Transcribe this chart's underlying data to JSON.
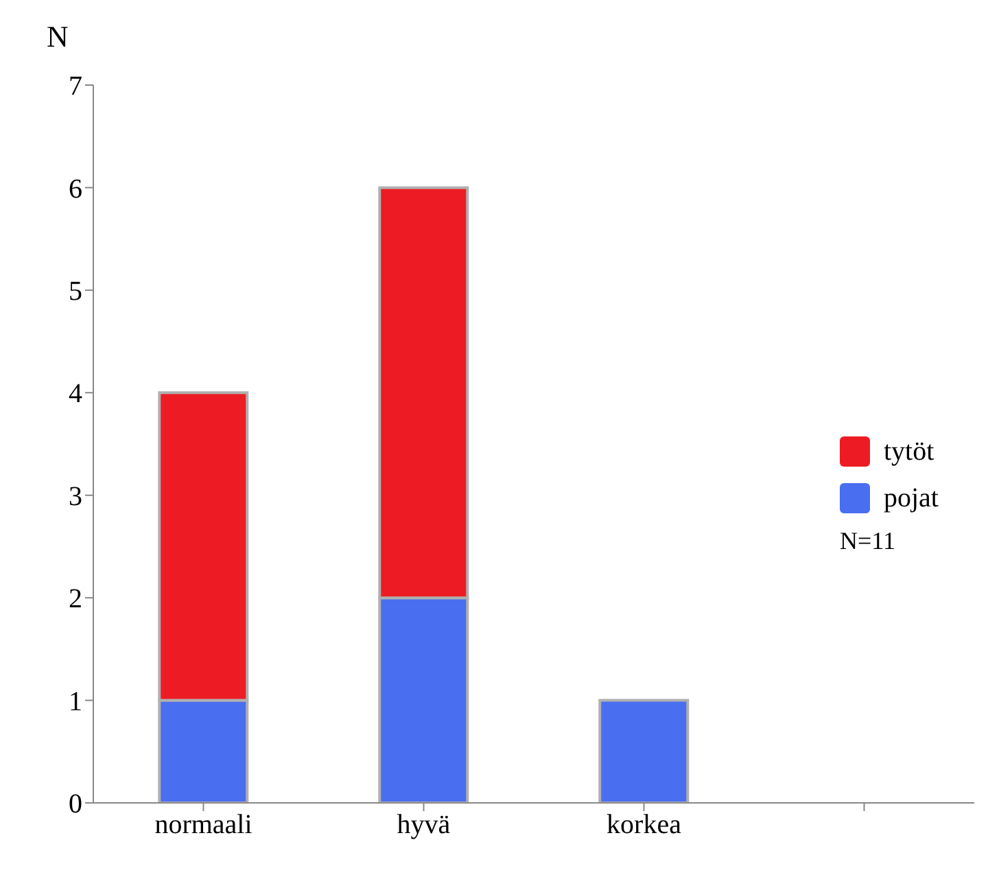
{
  "chart_data": {
    "type": "bar",
    "stacked": true,
    "ylabel": "N",
    "categories": [
      "normaali",
      "hyvä",
      "korkea",
      null
    ],
    "series": [
      {
        "name": "pojat",
        "color": "#4a6ef0",
        "values": [
          1,
          2,
          1,
          null
        ]
      },
      {
        "name": "tytöt",
        "color": "#ed1c24",
        "values": [
          3,
          4,
          null,
          null
        ]
      }
    ],
    "ylim": [
      0,
      7
    ],
    "yticks": [
      0,
      1,
      2,
      3,
      4,
      5,
      6,
      7
    ],
    "legend": "right",
    "annotations": [
      "N=11"
    ]
  }
}
